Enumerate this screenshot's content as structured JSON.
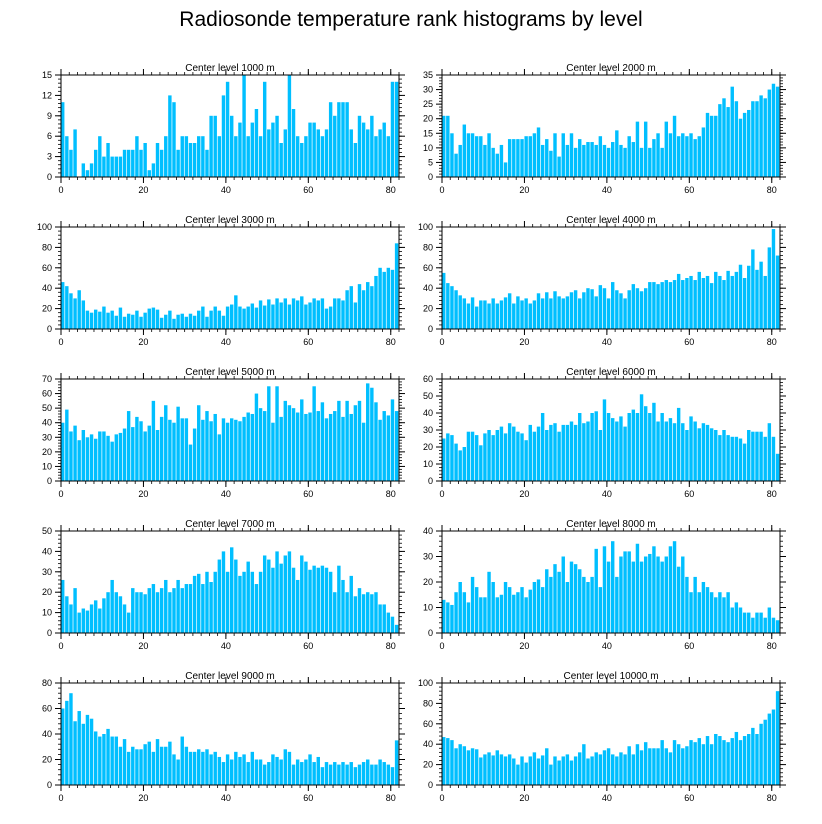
{
  "figure": {
    "title": "Radiosonde temperature rank histograms by level"
  },
  "colors": {
    "bar": "#00BFFF",
    "frame": "#000000"
  },
  "chart_data": [
    {
      "type": "bar",
      "title": "Center level 1000 m",
      "xlabel": "",
      "ylabel": "",
      "xlim": [
        0,
        82
      ],
      "ylim": [
        0,
        15
      ],
      "xticks": [
        0,
        20,
        40,
        60,
        80
      ],
      "yticks": [
        0,
        3,
        6,
        9,
        12,
        15
      ],
      "values": [
        11,
        6,
        4,
        7,
        0,
        2,
        1,
        2,
        4,
        6,
        3,
        5,
        3,
        3,
        3,
        4,
        4,
        4,
        6,
        4,
        5,
        1,
        2,
        5,
        4,
        6,
        12,
        11,
        4,
        6,
        6,
        5,
        5,
        6,
        6,
        4,
        9,
        9,
        6,
        12,
        14,
        9,
        6,
        8,
        15,
        6,
        8,
        10,
        6,
        14,
        7,
        8,
        9,
        5,
        7,
        15,
        10,
        6,
        5,
        6,
        8,
        8,
        7,
        6,
        7,
        11,
        9,
        11,
        11,
        11,
        7,
        5,
        9,
        8,
        7,
        9,
        6,
        7,
        8,
        6,
        14,
        14
      ]
    },
    {
      "type": "bar",
      "title": "Center level 2000 m",
      "xlabel": "",
      "ylabel": "",
      "xlim": [
        0,
        82
      ],
      "ylim": [
        0,
        35
      ],
      "xticks": [
        0,
        20,
        40,
        60,
        80
      ],
      "yticks": [
        0,
        5,
        10,
        15,
        20,
        25,
        30,
        35
      ],
      "values": [
        21,
        21,
        15,
        8,
        11,
        18,
        15,
        15,
        14,
        14,
        11,
        15,
        10,
        8,
        11,
        5,
        13,
        13,
        13,
        13,
        14,
        14,
        15,
        17,
        11,
        13,
        9,
        15,
        7,
        15,
        11,
        15,
        10,
        13,
        11,
        12,
        12,
        11,
        14,
        11,
        10,
        12,
        16,
        11,
        10,
        14,
        12,
        19,
        10,
        19,
        10,
        13,
        15,
        10,
        19,
        15,
        21,
        14,
        15,
        14,
        15,
        13,
        14,
        17,
        22,
        21,
        21,
        25,
        27,
        24,
        31,
        26,
        20,
        22,
        23,
        26,
        26,
        28,
        27,
        30,
        32,
        31
      ]
    },
    {
      "type": "bar",
      "title": "Center level 3000 m",
      "xlabel": "",
      "ylabel": "",
      "xlim": [
        0,
        82
      ],
      "ylim": [
        0,
        100
      ],
      "xticks": [
        0,
        20,
        40,
        60,
        80
      ],
      "yticks": [
        0,
        20,
        40,
        60,
        80,
        100
      ],
      "values": [
        46,
        42,
        35,
        30,
        38,
        28,
        18,
        16,
        19,
        17,
        22,
        16,
        18,
        13,
        21,
        12,
        15,
        14,
        18,
        12,
        16,
        20,
        21,
        19,
        11,
        14,
        18,
        10,
        14,
        15,
        12,
        15,
        13,
        18,
        22,
        12,
        18,
        22,
        18,
        13,
        22,
        24,
        33,
        22,
        20,
        22,
        25,
        21,
        28,
        23,
        29,
        24,
        30,
        26,
        30,
        24,
        30,
        28,
        32,
        24,
        26,
        30,
        28,
        30,
        20,
        22,
        30,
        30,
        28,
        38,
        42,
        26,
        44,
        38,
        46,
        42,
        52,
        60,
        56,
        60,
        58,
        84
      ]
    },
    {
      "type": "bar",
      "title": "Center level 4000 m",
      "xlabel": "",
      "ylabel": "",
      "xlim": [
        0,
        82
      ],
      "ylim": [
        0,
        100
      ],
      "xticks": [
        0,
        20,
        40,
        60,
        80
      ],
      "yticks": [
        0,
        20,
        40,
        60,
        80,
        100
      ],
      "values": [
        55,
        45,
        42,
        38,
        33,
        30,
        25,
        31,
        22,
        28,
        28,
        25,
        30,
        25,
        28,
        31,
        35,
        25,
        32,
        28,
        30,
        25,
        28,
        35,
        30,
        36,
        30,
        37,
        32,
        30,
        32,
        36,
        38,
        30,
        36,
        40,
        39,
        32,
        43,
        40,
        30,
        46,
        38,
        35,
        30,
        38,
        44,
        40,
        37,
        40,
        46,
        46,
        44,
        46,
        48,
        46,
        48,
        54,
        48,
        50,
        52,
        48,
        56,
        50,
        52,
        45,
        56,
        52,
        48,
        57,
        52,
        56,
        63,
        50,
        62,
        78,
        58,
        66,
        52,
        80,
        98,
        72
      ]
    },
    {
      "type": "bar",
      "title": "Center level 5000 m",
      "xlabel": "",
      "ylabel": "",
      "xlim": [
        0,
        82
      ],
      "ylim": [
        0,
        70
      ],
      "xticks": [
        0,
        20,
        40,
        60,
        80
      ],
      "yticks": [
        0,
        10,
        20,
        30,
        40,
        50,
        60,
        70
      ],
      "values": [
        40,
        49,
        34,
        38,
        28,
        35,
        30,
        32,
        29,
        34,
        34,
        31,
        27,
        32,
        33,
        36,
        48,
        37,
        44,
        41,
        34,
        38,
        55,
        35,
        44,
        52,
        42,
        40,
        51,
        43,
        43,
        25,
        36,
        52,
        42,
        48,
        41,
        46,
        32,
        43,
        40,
        43,
        42,
        41,
        44,
        47,
        46,
        60,
        50,
        48,
        65,
        40,
        65,
        44,
        55,
        52,
        50,
        47,
        56,
        46,
        47,
        65,
        48,
        54,
        43,
        46,
        48,
        55,
        44,
        55,
        46,
        52,
        55,
        40,
        67,
        64,
        54,
        42,
        48,
        45,
        56,
        48
      ]
    },
    {
      "type": "bar",
      "title": "Center level 6000 m",
      "xlabel": "",
      "ylabel": "",
      "xlim": [
        0,
        82
      ],
      "ylim": [
        0,
        60
      ],
      "xticks": [
        0,
        20,
        40,
        60,
        80
      ],
      "yticks": [
        0,
        10,
        20,
        30,
        40,
        50,
        60
      ],
      "values": [
        25,
        28,
        27,
        22,
        18,
        20,
        29,
        29,
        27,
        21,
        28,
        30,
        27,
        30,
        32,
        28,
        34,
        32,
        29,
        28,
        24,
        33,
        29,
        32,
        40,
        30,
        33,
        34,
        29,
        33,
        33,
        35,
        33,
        40,
        34,
        35,
        40,
        41,
        30,
        48,
        40,
        37,
        35,
        38,
        32,
        40,
        42,
        40,
        51,
        44,
        40,
        46,
        35,
        40,
        35,
        37,
        34,
        43,
        34,
        30,
        38,
        35,
        31,
        34,
        33,
        31,
        30,
        27,
        30,
        27,
        26,
        26,
        25,
        22,
        30,
        29,
        29,
        29,
        26,
        34,
        26,
        16
      ]
    },
    {
      "type": "bar",
      "title": "Center level 7000 m",
      "xlabel": "",
      "ylabel": "",
      "xlim": [
        0,
        82
      ],
      "ylim": [
        0,
        50
      ],
      "xticks": [
        0,
        20,
        40,
        60,
        80
      ],
      "yticks": [
        0,
        10,
        20,
        30,
        40,
        50
      ],
      "values": [
        26,
        18,
        14,
        22,
        10,
        12,
        11,
        14,
        16,
        12,
        17,
        20,
        26,
        20,
        18,
        14,
        10,
        22,
        20,
        20,
        19,
        22,
        24,
        20,
        22,
        26,
        20,
        22,
        26,
        22,
        24,
        24,
        28,
        29,
        24,
        30,
        25,
        30,
        36,
        40,
        30,
        42,
        36,
        28,
        30,
        35,
        30,
        24,
        30,
        38,
        36,
        32,
        40,
        34,
        38,
        40,
        32,
        26,
        38,
        35,
        31,
        33,
        32,
        33,
        32,
        30,
        20,
        33,
        26,
        20,
        28,
        18,
        22,
        19,
        20,
        19,
        20,
        14,
        14,
        10,
        8,
        4
      ]
    },
    {
      "type": "bar",
      "title": "Center level 8000 m",
      "xlabel": "",
      "ylabel": "",
      "xlim": [
        0,
        82
      ],
      "ylim": [
        0,
        40
      ],
      "xticks": [
        0,
        20,
        40,
        60,
        80
      ],
      "yticks": [
        0,
        10,
        20,
        30,
        40
      ],
      "values": [
        13,
        12,
        11,
        16,
        20,
        16,
        12,
        22,
        18,
        14,
        14,
        24,
        20,
        14,
        15,
        20,
        18,
        15,
        16,
        18,
        14,
        17,
        20,
        21,
        18,
        25,
        22,
        27,
        24,
        30,
        20,
        28,
        27,
        25,
        22,
        20,
        22,
        33,
        18,
        34,
        28,
        36,
        22,
        30,
        32,
        32,
        28,
        35,
        28,
        30,
        31,
        34,
        30,
        28,
        30,
        34,
        36,
        26,
        30,
        22,
        16,
        22,
        16,
        20,
        18,
        16,
        14,
        16,
        14,
        16,
        10,
        12,
        10,
        8,
        8,
        6,
        8,
        8,
        6,
        10,
        6,
        5
      ]
    },
    {
      "type": "bar",
      "title": "Center level 9000 m",
      "xlabel": "",
      "ylabel": "",
      "xlim": [
        0,
        82
      ],
      "ylim": [
        0,
        80
      ],
      "xticks": [
        0,
        20,
        40,
        60,
        80
      ],
      "yticks": [
        0,
        20,
        40,
        60,
        80
      ],
      "values": [
        60,
        66,
        72,
        50,
        58,
        48,
        55,
        52,
        42,
        38,
        40,
        44,
        38,
        38,
        30,
        36,
        26,
        30,
        28,
        28,
        32,
        34,
        26,
        36,
        30,
        30,
        34,
        24,
        20,
        38,
        30,
        26,
        26,
        28,
        26,
        28,
        24,
        26,
        22,
        18,
        24,
        20,
        26,
        22,
        24,
        18,
        26,
        20,
        20,
        16,
        18,
        24,
        22,
        20,
        28,
        26,
        16,
        20,
        18,
        20,
        24,
        18,
        22,
        14,
        18,
        16,
        18,
        16,
        18,
        16,
        18,
        14,
        16,
        18,
        20,
        16,
        16,
        20,
        18,
        16,
        14,
        35
      ]
    },
    {
      "type": "bar",
      "title": "Center level 10000 m",
      "xlabel": "",
      "ylabel": "",
      "xlim": [
        0,
        82
      ],
      "ylim": [
        0,
        100
      ],
      "xticks": [
        0,
        20,
        40,
        60,
        80
      ],
      "yticks": [
        0,
        20,
        40,
        60,
        80,
        100
      ],
      "values": [
        47,
        46,
        44,
        36,
        40,
        38,
        34,
        36,
        35,
        27,
        30,
        32,
        29,
        34,
        30,
        28,
        30,
        26,
        20,
        28,
        22,
        28,
        32,
        26,
        29,
        36,
        20,
        28,
        24,
        28,
        30,
        24,
        28,
        32,
        40,
        26,
        28,
        32,
        30,
        34,
        36,
        30,
        28,
        32,
        30,
        38,
        30,
        40,
        34,
        42,
        36,
        36,
        36,
        44,
        36,
        32,
        44,
        40,
        36,
        38,
        44,
        42,
        46,
        40,
        48,
        40,
        50,
        48,
        44,
        42,
        46,
        52,
        44,
        48,
        50,
        56,
        50,
        60,
        64,
        70,
        74,
        92
      ]
    }
  ]
}
